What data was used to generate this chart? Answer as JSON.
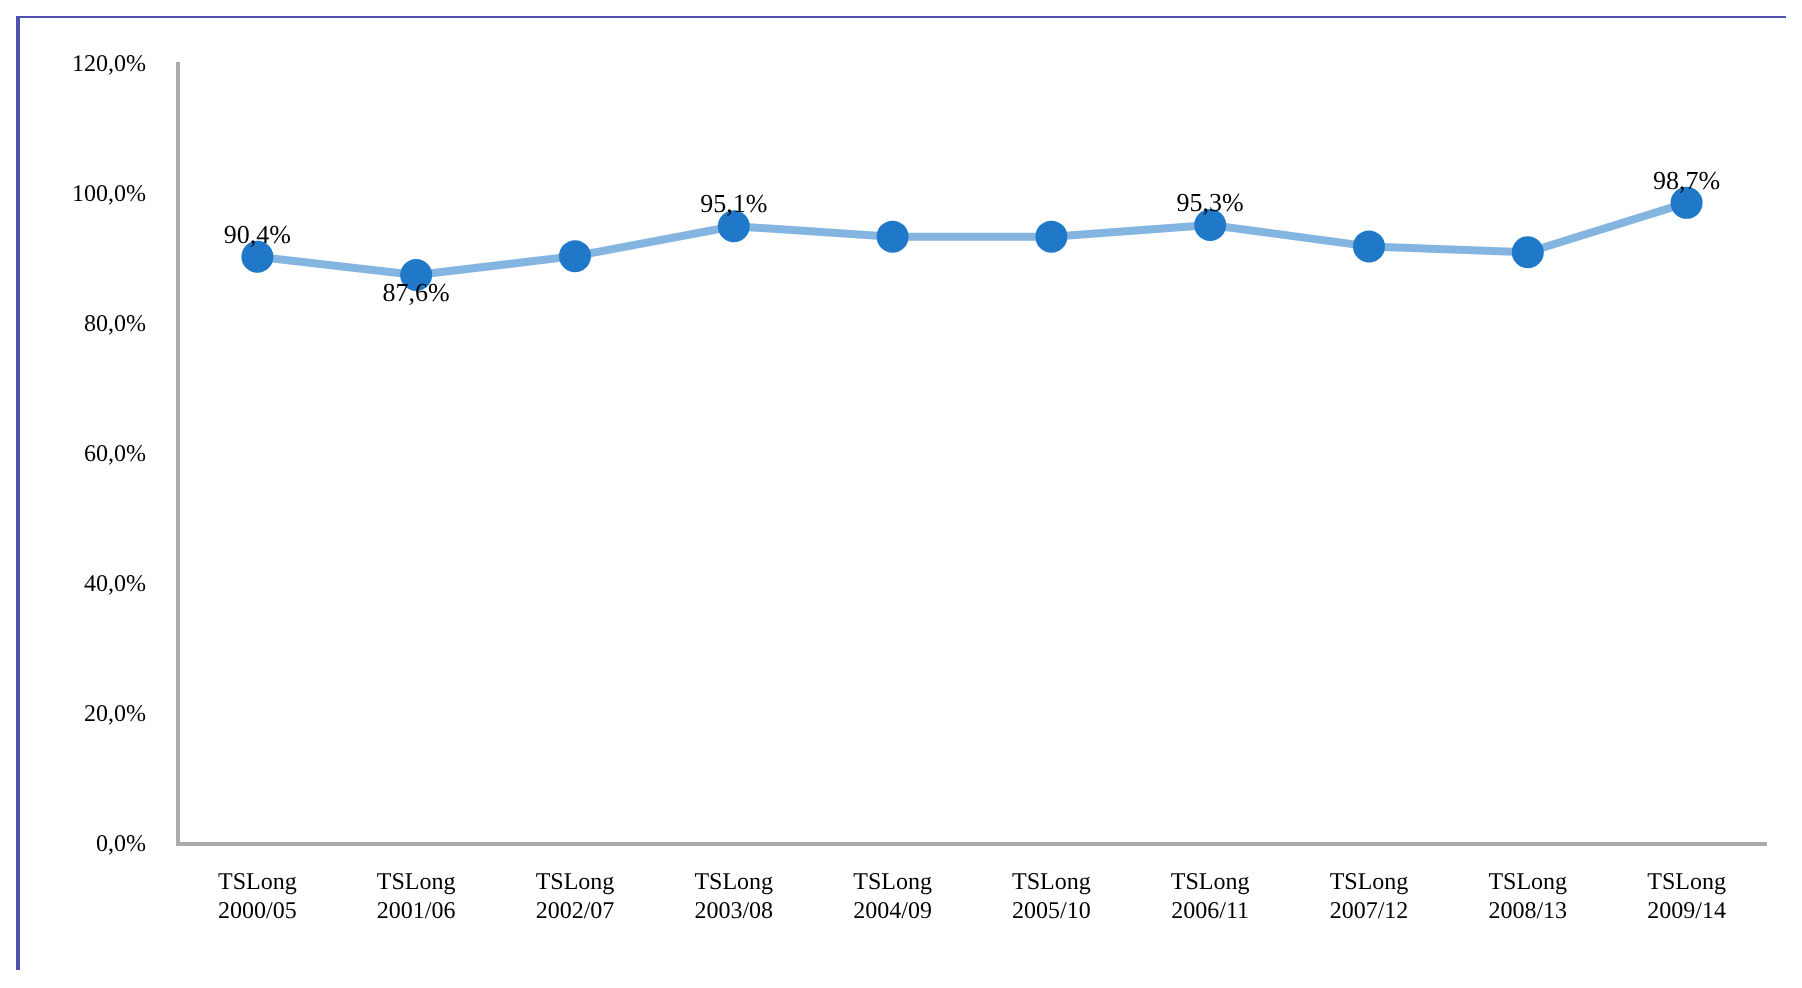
{
  "chart_data": {
    "type": "line",
    "categories": [
      "TSLong 2000/05",
      "TSLong 2001/06",
      "TSLong 2002/07",
      "TSLong 2003/08",
      "TSLong 2004/09",
      "TSLong 2005/10",
      "TSLong 2006/11",
      "TSLong 2007/12",
      "TSLong 2008/13",
      "TSLong 2009/14"
    ],
    "series": [
      {
        "color": "#1f78c8",
        "values": [
          90.4,
          87.6,
          90.5,
          95.1,
          93.5,
          93.5,
          95.3,
          92.0,
          91.1,
          98.7
        ],
        "value_labels": [
          "90,4%",
          "87,6%",
          null,
          "95,1%",
          null,
          null,
          "95,3%",
          null,
          null,
          "98,7%"
        ]
      }
    ],
    "ylim": [
      0,
      120
    ],
    "yticks": [
      {
        "value": 0,
        "label": "0,0%"
      },
      {
        "value": 20,
        "label": "20,0%"
      },
      {
        "value": 40,
        "label": "40,0%"
      },
      {
        "value": 60,
        "label": "60,0%"
      },
      {
        "value": 80,
        "label": "80,0%"
      },
      {
        "value": 100,
        "label": "100,0%"
      },
      {
        "value": 120,
        "label": "120,0%"
      }
    ],
    "grid": false,
    "legend": false,
    "marker": "circle",
    "line_style": "solid"
  }
}
